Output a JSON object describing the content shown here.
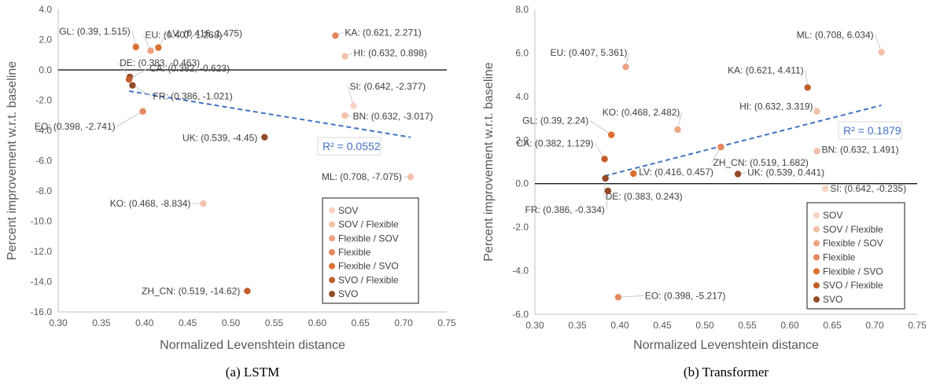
{
  "chart_data": [
    {
      "type": "scatter",
      "caption": "(a) LSTM",
      "xlabel": "Normalized Levenshtein distance",
      "ylabel": "Percent improvement w.r.t. baseline",
      "xlim": [
        0.3,
        0.75
      ],
      "ylim": [
        -16.0,
        4.0
      ],
      "xticks": [
        "0.30",
        "0.35",
        "0.40",
        "0.45",
        "0.50",
        "0.55",
        "0.60",
        "0.65",
        "0.70",
        "0.75"
      ],
      "yticks": [
        "4.0",
        "2.0",
        "0.0",
        "-2.0",
        "-4.0",
        "-6.0",
        "-8.0",
        "-10.0",
        "-12.0",
        "-14.0",
        "-16.0"
      ],
      "r2_label": "R² = 0.0552",
      "trendline": {
        "x": [
          0.382,
          0.708
        ],
        "y": [
          -1.4,
          -4.45
        ]
      },
      "legend": [
        "SOV",
        "SOV / Flexible",
        "Flexible / SOV",
        "Flexible",
        "Flexible / SVO",
        "SVO / Flexible",
        "SVO"
      ],
      "points": [
        {
          "label": "GL: (0.39, 1.515)",
          "x": 0.39,
          "y": 1.515,
          "cat": 4
        },
        {
          "label": "EU: (0.407, 1.268)",
          "x": 0.407,
          "y": 1.268,
          "cat": 2
        },
        {
          "label": "LV: (0.416, 1.475)",
          "x": 0.416,
          "y": 1.475,
          "cat": 4
        },
        {
          "label": "DE: (0.383, -0.463)",
          "x": 0.383,
          "y": -0.463,
          "cat": 6
        },
        {
          "label": "CA: (0.382, -0.623)",
          "x": 0.382,
          "y": -0.623,
          "cat": 5
        },
        {
          "label": "FR: (0.386, -1.021)",
          "x": 0.386,
          "y": -1.021,
          "cat": 6
        },
        {
          "label": "EO: (0.398, -2.741)",
          "x": 0.398,
          "y": -2.741,
          "cat": 3
        },
        {
          "label": "KA: (0.621, 2.271)",
          "x": 0.621,
          "y": 2.271,
          "cat": 3
        },
        {
          "label": "HI: (0.632, 0.898)",
          "x": 0.632,
          "y": 0.898,
          "cat": 1
        },
        {
          "label": "SI: (0.642, -2.377)",
          "x": 0.642,
          "y": -2.377,
          "cat": 0
        },
        {
          "label": "BN: (0.632, -3.017)",
          "x": 0.632,
          "y": -3.017,
          "cat": 1
        },
        {
          "label": "UK: (0.539, -4.45)",
          "x": 0.539,
          "y": -4.45,
          "cat": 6
        },
        {
          "label": "ML: (0.708, -7.075)",
          "x": 0.708,
          "y": -7.075,
          "cat": 1
        },
        {
          "label": "KO: (0.468, -8.834)",
          "x": 0.468,
          "y": -8.834,
          "cat": 1
        },
        {
          "label": "ZH_CN: (0.519, -14.62)",
          "x": 0.519,
          "y": -14.62,
          "cat": 5
        }
      ]
    },
    {
      "type": "scatter",
      "caption": "(b) Transformer",
      "xlabel": "Normalized Levenshtein distance",
      "ylabel": "Percent improvement w.r.t. baseline",
      "xlim": [
        0.3,
        0.75
      ],
      "ylim": [
        -6.0,
        8.0
      ],
      "xticks": [
        "0.30",
        "0.35",
        "0.40",
        "0.45",
        "0.50",
        "0.55",
        "0.60",
        "0.65",
        "0.70",
        "0.75"
      ],
      "yticks": [
        "8.0",
        "6.0",
        "4.0",
        "2.0",
        "0.0",
        "-2.0",
        "-4.0",
        "-6.0"
      ],
      "r2_label": "R² = 0.1879",
      "trendline": {
        "x": [
          0.382,
          0.708
        ],
        "y": [
          0.35,
          3.6
        ]
      },
      "legend": [
        "SOV",
        "SOV / Flexible",
        "Flexible / SOV",
        "Flexible",
        "Flexible / SVO",
        "SVO / Flexible",
        "SVO"
      ],
      "points": [
        {
          "label": "ML: (0.708, 6.034)",
          "x": 0.708,
          "y": 6.034,
          "cat": 1
        },
        {
          "label": "EU: (0.407, 5.361)",
          "x": 0.407,
          "y": 5.361,
          "cat": 2
        },
        {
          "label": "KA: (0.621, 4.411)",
          "x": 0.621,
          "y": 4.411,
          "cat": 5
        },
        {
          "label": "HI: (0.632, 3.319)",
          "x": 0.632,
          "y": 3.319,
          "cat": 1
        },
        {
          "label": "KO: (0.468, 2.482)",
          "x": 0.468,
          "y": 2.482,
          "cat": 2
        },
        {
          "label": "GL: (0.39, 2.24)",
          "x": 0.39,
          "y": 2.24,
          "cat": 4
        },
        {
          "label": "CA: (0.382, 1.129)",
          "x": 0.382,
          "y": 1.129,
          "cat": 5
        },
        {
          "label": "ZH_CN: (0.519, 1.682)",
          "x": 0.519,
          "y": 1.682,
          "cat": 3
        },
        {
          "label": "BN: (0.632, 1.491)",
          "x": 0.632,
          "y": 1.491,
          "cat": 1
        },
        {
          "label": "LV: (0.416, 0.457)",
          "x": 0.416,
          "y": 0.457,
          "cat": 4
        },
        {
          "label": "UK: (0.539, 0.441)",
          "x": 0.539,
          "y": 0.441,
          "cat": 6
        },
        {
          "label": "DE: (0.383, 0.243)",
          "x": 0.383,
          "y": 0.243,
          "cat": 6
        },
        {
          "label": "SI: (0.642, -0.235)",
          "x": 0.642,
          "y": -0.235,
          "cat": 0
        },
        {
          "label": "FR: (0.386, -0.334)",
          "x": 0.386,
          "y": -0.334,
          "cat": 6
        },
        {
          "label": "EO: (0.398, -5.217)",
          "x": 0.398,
          "y": -5.217,
          "cat": 3
        }
      ]
    }
  ],
  "colors": {
    "categories": [
      "#f8d3c4",
      "#f3c0aa",
      "#eda283",
      "#e5875e",
      "#da7030",
      "#c25e2a",
      "#924a25"
    ],
    "trend": "#4472c4",
    "axis_text": "#595959",
    "gridline": "#d9d9d9"
  }
}
